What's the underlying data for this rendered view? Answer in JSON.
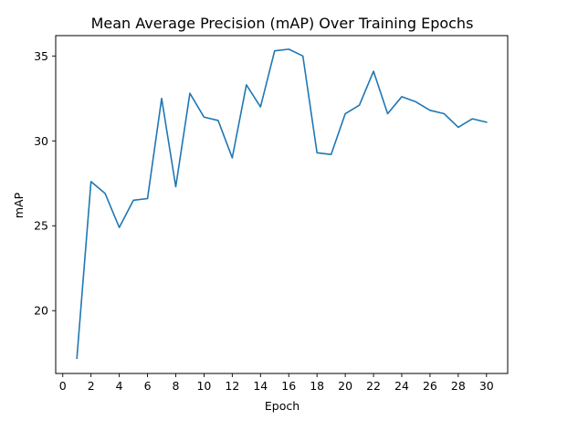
{
  "chart_data": {
    "type": "line",
    "title": "Mean Average Precision (mAP) Over Training Epochs",
    "xlabel": "Epoch",
    "ylabel": "mAP",
    "xlim": [
      -0.5,
      31.5
    ],
    "ylim": [
      16.3,
      36.2
    ],
    "xticks": [
      0,
      2,
      4,
      6,
      8,
      10,
      12,
      14,
      16,
      18,
      20,
      22,
      24,
      26,
      28,
      30
    ],
    "yticks": [
      20,
      25,
      30,
      35
    ],
    "grid": false,
    "series": [
      {
        "color": "#1f77b4",
        "x": [
          1,
          2,
          3,
          4,
          5,
          6,
          7,
          8,
          9,
          10,
          11,
          12,
          13,
          14,
          15,
          16,
          17,
          18,
          19,
          20,
          21,
          22,
          23,
          24,
          25,
          26,
          27,
          28,
          29,
          30
        ],
        "y": [
          17.2,
          27.6,
          26.9,
          24.9,
          26.5,
          26.6,
          32.5,
          27.3,
          32.8,
          31.4,
          31.2,
          29.0,
          33.3,
          32.0,
          35.3,
          35.4,
          35.0,
          29.3,
          29.2,
          31.6,
          32.1,
          34.1,
          31.6,
          32.6,
          32.3,
          31.8,
          31.6,
          30.8,
          31.3,
          31.1
        ]
      }
    ]
  }
}
